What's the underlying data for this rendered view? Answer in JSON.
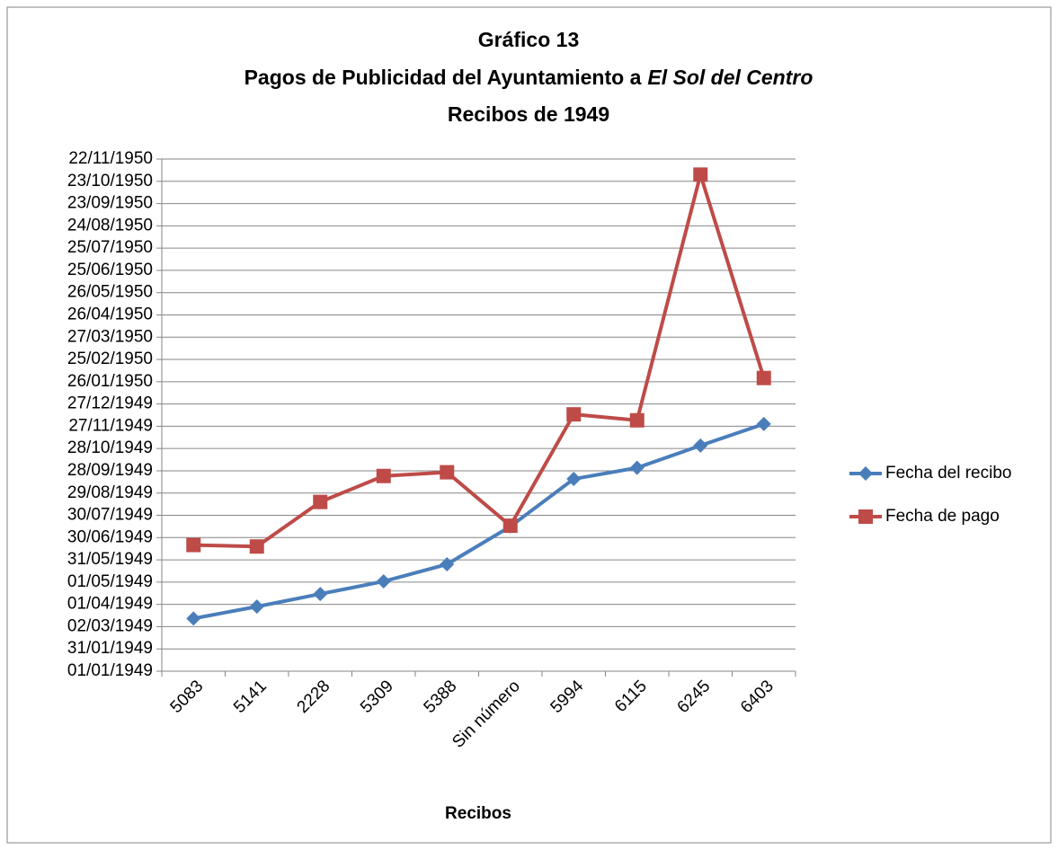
{
  "chart_data": {
    "type": "line",
    "title": "Gráfico 13",
    "subtitle": [
      "Pagos de Publicidad del Ayuntamiento a",
      "El Sol del Centro",
      "Recibos de 1949"
    ],
    "x_label": "Recibos",
    "categories": [
      "5083",
      "5141",
      "2228",
      "5309",
      "5388",
      "Sin número",
      "5994",
      "6115",
      "6245",
      "6403"
    ],
    "series": [
      {
        "name": "Fecha del recibo",
        "color": "#4a7ebb",
        "marker": "diamond",
        "values": [
          17970,
          17986,
          18003,
          18020,
          18043,
          18094,
          18158,
          18173,
          18203,
          18232
        ]
      },
      {
        "name": "Fecha de pago",
        "color": "#be4b48",
        "marker": "square",
        "values": [
          18069,
          18067,
          18127,
          18162,
          18167,
          18095,
          18245,
          18237,
          18568,
          18294
        ]
      }
    ],
    "ylim": [
      17899,
      18589
    ],
    "yticks": [
      {
        "value": 17899,
        "label": "01/01/1949"
      },
      {
        "value": 17929,
        "label": "31/01/1949"
      },
      {
        "value": 17959,
        "label": "02/03/1949"
      },
      {
        "value": 17989,
        "label": "01/04/1949"
      },
      {
        "value": 18019,
        "label": "01/05/1949"
      },
      {
        "value": 18049,
        "label": "31/05/1949"
      },
      {
        "value": 18079,
        "label": "30/06/1949"
      },
      {
        "value": 18109,
        "label": "30/07/1949"
      },
      {
        "value": 18139,
        "label": "29/08/1949"
      },
      {
        "value": 18169,
        "label": "28/09/1949"
      },
      {
        "value": 18199,
        "label": "28/10/1949"
      },
      {
        "value": 18229,
        "label": "27/11/1949"
      },
      {
        "value": 18259,
        "label": "27/12/1949"
      },
      {
        "value": 18289,
        "label": "26/01/1950"
      },
      {
        "value": 18319,
        "label": "25/02/1950"
      },
      {
        "value": 18349,
        "label": "27/03/1950"
      },
      {
        "value": 18379,
        "label": "26/04/1950"
      },
      {
        "value": 18409,
        "label": "26/05/1950"
      },
      {
        "value": 18439,
        "label": "25/06/1950"
      },
      {
        "value": 18469,
        "label": "25/07/1950"
      },
      {
        "value": 18499,
        "label": "24/08/1950"
      },
      {
        "value": 18529,
        "label": "23/09/1950"
      },
      {
        "value": 18559,
        "label": "23/10/1950"
      },
      {
        "value": 18589,
        "label": "22/11/1950"
      }
    ],
    "grid": true,
    "legend": "right"
  }
}
